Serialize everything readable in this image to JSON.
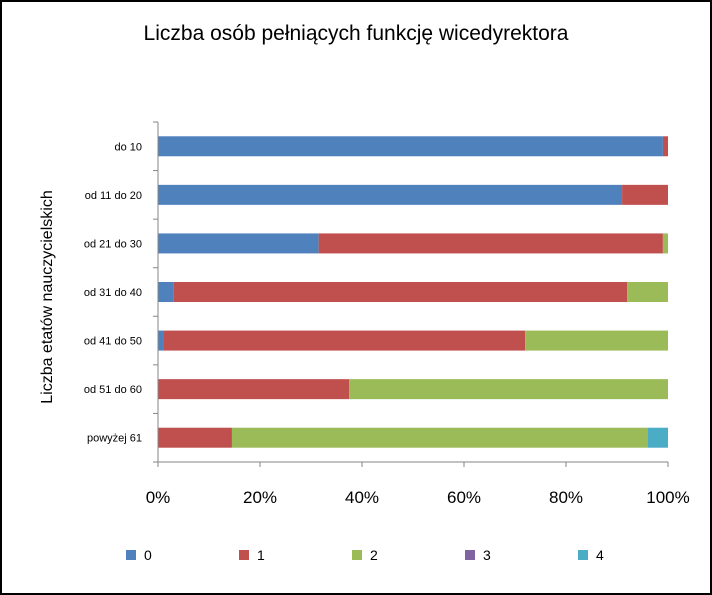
{
  "chart_data": {
    "type": "bar",
    "orientation": "horizontal",
    "stacked": "percent",
    "title": "Liczba osób pełniących funkcję wicedyrektora",
    "ylabel": "Liczba etatów nauczycielskich",
    "xlabel": "",
    "xlim": [
      0,
      100
    ],
    "x_ticks": [
      "0%",
      "20%",
      "40%",
      "60%",
      "80%",
      "100%"
    ],
    "grid": false,
    "legend_position": "bottom",
    "categories": [
      "do 10",
      "od 11 do 20",
      "od 21 do 30",
      "od 31 do 40",
      "od 41 do 50",
      "od 51 do 60",
      "powyżej 61"
    ],
    "series": [
      {
        "name": "0",
        "color": "#4F81BD",
        "values": [
          99,
          91,
          31.5,
          3,
          1,
          0,
          0
        ]
      },
      {
        "name": "1",
        "color": "#C0504D",
        "values": [
          1,
          9,
          67.5,
          89,
          71,
          37.5,
          14.5
        ]
      },
      {
        "name": "2",
        "color": "#9BBB59",
        "values": [
          0,
          0,
          1,
          8,
          28,
          62.5,
          81.5
        ]
      },
      {
        "name": "3",
        "color": "#8064A2",
        "values": [
          0,
          0,
          0,
          0,
          0,
          0,
          0
        ]
      },
      {
        "name": "4",
        "color": "#4BACC6",
        "values": [
          0,
          0,
          0,
          0,
          0,
          0,
          4
        ]
      }
    ]
  }
}
